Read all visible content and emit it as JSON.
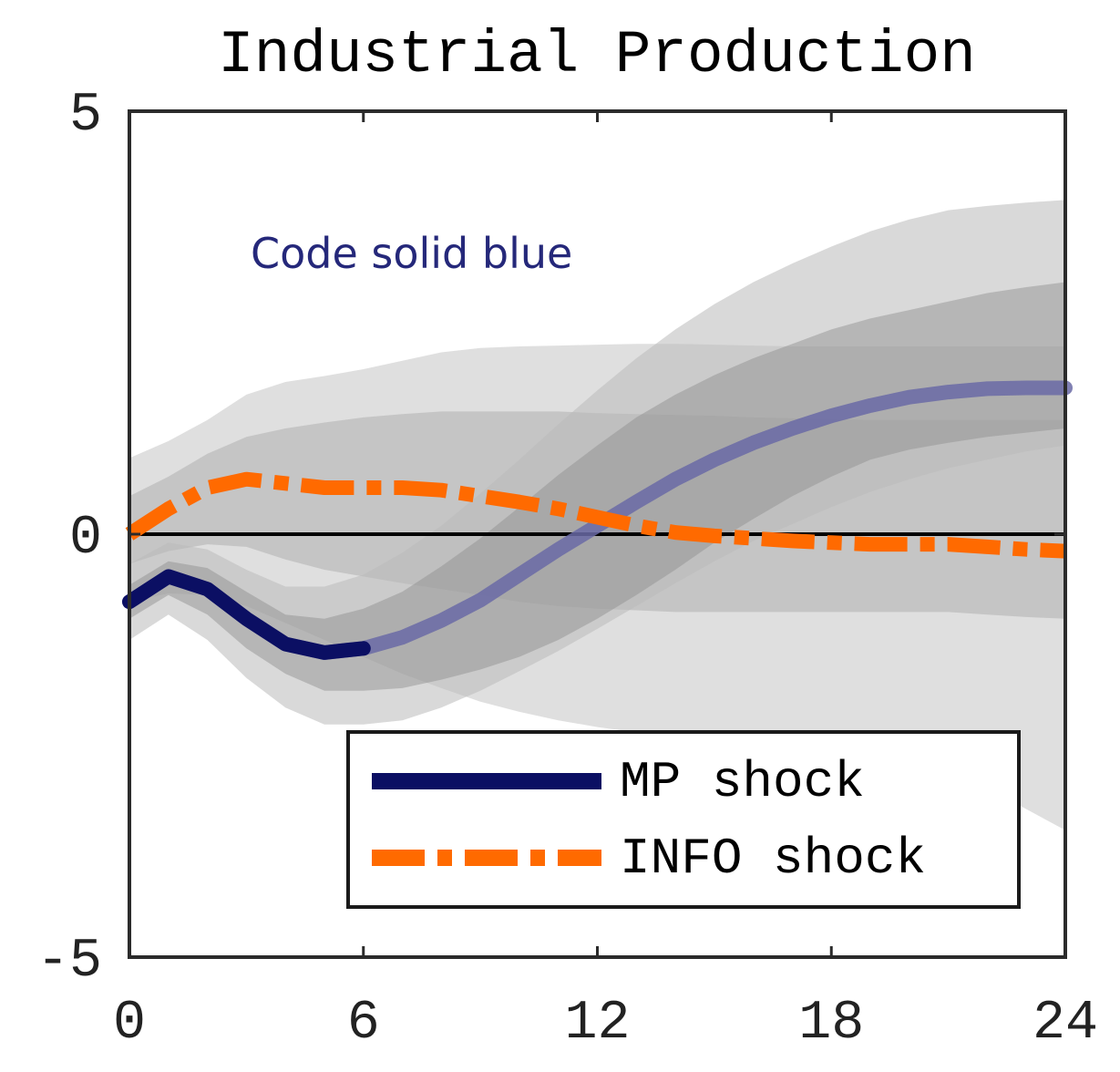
{
  "chart_data": {
    "type": "line",
    "title": "Industrial Production",
    "xlabel": "",
    "ylabel": "",
    "xlim": [
      0,
      24
    ],
    "ylim": [
      -5,
      5
    ],
    "xticks": [
      0,
      6,
      12,
      18,
      24
    ],
    "yticks": [
      -5,
      0,
      5
    ],
    "grid": false,
    "legend_position": "bottom-right",
    "annotation": "Code solid blue",
    "x": [
      0,
      1,
      2,
      3,
      4,
      5,
      6,
      7,
      8,
      9,
      10,
      11,
      12,
      13,
      14,
      15,
      16,
      17,
      18,
      19,
      20,
      21,
      22,
      23,
      24
    ],
    "series": [
      {
        "name": "MP shock",
        "style": "solid",
        "color": "#0b0f63",
        "values": [
          -0.8,
          -0.5,
          -0.65,
          -1.0,
          -1.3,
          -1.4,
          -1.35,
          -1.22,
          -1.02,
          -0.78,
          -0.48,
          -0.18,
          0.1,
          0.38,
          0.65,
          0.88,
          1.08,
          1.25,
          1.4,
          1.52,
          1.62,
          1.68,
          1.72,
          1.73,
          1.73
        ],
        "band_inner": {
          "lower": [
            -1.0,
            -0.72,
            -0.95,
            -1.35,
            -1.65,
            -1.85,
            -1.85,
            -1.82,
            -1.72,
            -1.6,
            -1.45,
            -1.25,
            -1.0,
            -0.72,
            -0.42,
            -0.1,
            0.18,
            0.45,
            0.68,
            0.88,
            1.0,
            1.08,
            1.15,
            1.2,
            1.25
          ],
          "upper": [
            -0.6,
            -0.32,
            -0.4,
            -0.68,
            -0.95,
            -1.0,
            -0.88,
            -0.68,
            -0.38,
            -0.05,
            0.32,
            0.7,
            1.05,
            1.38,
            1.65,
            1.88,
            2.08,
            2.25,
            2.42,
            2.55,
            2.65,
            2.75,
            2.85,
            2.92,
            2.98
          ]
        },
        "band_outer": {
          "lower": [
            -1.25,
            -0.95,
            -1.25,
            -1.7,
            -2.05,
            -2.25,
            -2.25,
            -2.2,
            -2.05,
            -1.85,
            -1.62,
            -1.38,
            -1.12,
            -0.85,
            -0.58,
            -0.32,
            -0.08,
            0.12,
            0.32,
            0.5,
            0.65,
            0.78,
            0.88,
            0.98,
            1.05
          ],
          "upper": [
            -0.35,
            -0.1,
            -0.18,
            -0.42,
            -0.62,
            -0.62,
            -0.48,
            -0.22,
            0.1,
            0.48,
            0.88,
            1.3,
            1.7,
            2.08,
            2.42,
            2.72,
            2.98,
            3.2,
            3.4,
            3.58,
            3.72,
            3.83,
            3.88,
            3.92,
            3.95
          ]
        }
      },
      {
        "name": "INFO shock",
        "style": "dash-dot",
        "color": "#ff6a00",
        "values": [
          0.0,
          0.3,
          0.55,
          0.65,
          0.6,
          0.55,
          0.55,
          0.55,
          0.52,
          0.45,
          0.38,
          0.3,
          0.2,
          0.1,
          0.02,
          -0.02,
          -0.05,
          -0.08,
          -0.1,
          -0.12,
          -0.12,
          -0.12,
          -0.15,
          -0.18,
          -0.2
        ],
        "band_inner": {
          "lower": [
            -0.35,
            -0.2,
            -0.12,
            -0.15,
            -0.3,
            -0.42,
            -0.5,
            -0.58,
            -0.65,
            -0.72,
            -0.8,
            -0.85,
            -0.88,
            -0.9,
            -0.92,
            -0.92,
            -0.92,
            -0.92,
            -0.92,
            -0.92,
            -0.92,
            -0.92,
            -0.95,
            -0.98,
            -1.0
          ],
          "upper": [
            0.45,
            0.68,
            0.95,
            1.15,
            1.25,
            1.32,
            1.38,
            1.42,
            1.45,
            1.45,
            1.45,
            1.45,
            1.43,
            1.42,
            1.41,
            1.4,
            1.38,
            1.37,
            1.36,
            1.35,
            1.35,
            1.35,
            1.35,
            1.35,
            1.35
          ]
        },
        "band_outer": {
          "lower": [
            -0.8,
            -0.7,
            -0.72,
            -0.85,
            -1.05,
            -1.25,
            -1.45,
            -1.65,
            -1.82,
            -1.98,
            -2.1,
            -2.2,
            -2.28,
            -2.34,
            -2.4,
            -2.44,
            -2.5,
            -2.55,
            -2.62,
            -2.7,
            -2.78,
            -2.85,
            -3.0,
            -3.25,
            -3.5
          ],
          "upper": [
            0.9,
            1.1,
            1.35,
            1.65,
            1.8,
            1.87,
            1.95,
            2.05,
            2.15,
            2.2,
            2.22,
            2.23,
            2.24,
            2.25,
            2.25,
            2.24,
            2.23,
            2.22,
            2.22,
            2.22,
            2.22,
            2.22,
            2.22,
            2.22,
            2.22
          ]
        }
      }
    ]
  },
  "colors": {
    "band_outer": "#b9b9b9",
    "band_inner": "#8c8c8c",
    "axis": "#2b2b2b",
    "annotation": "#25287a"
  }
}
